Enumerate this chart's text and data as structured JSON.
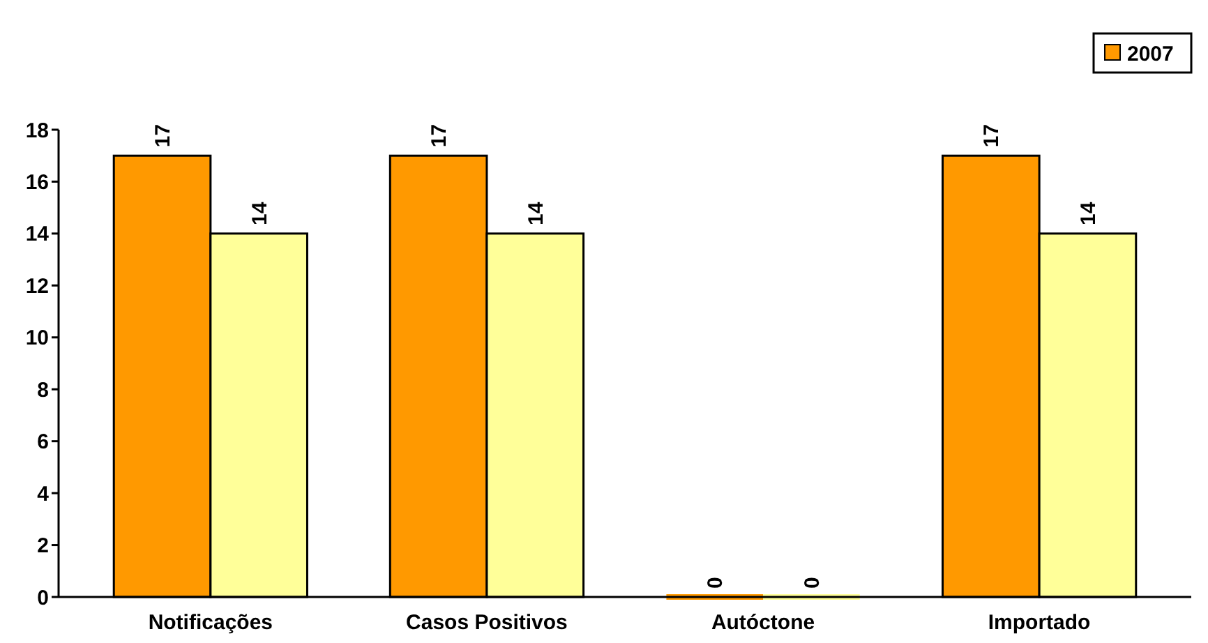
{
  "chart_data": {
    "type": "bar",
    "categories": [
      "Notificações",
      "Casos Positivos",
      "Autóctone",
      "Importado"
    ],
    "series": [
      {
        "name": "2007",
        "color": "#ff9900",
        "values": [
          17,
          17,
          0,
          17
        ]
      },
      {
        "color": "#ffff99",
        "values": [
          14,
          14,
          0,
          14
        ]
      }
    ],
    "ylim": [
      0,
      18
    ],
    "yticks": [
      0,
      2,
      4,
      6,
      8,
      10,
      12,
      14,
      16,
      18
    ],
    "data_labels": true,
    "legend": "top right",
    "grid": false
  }
}
